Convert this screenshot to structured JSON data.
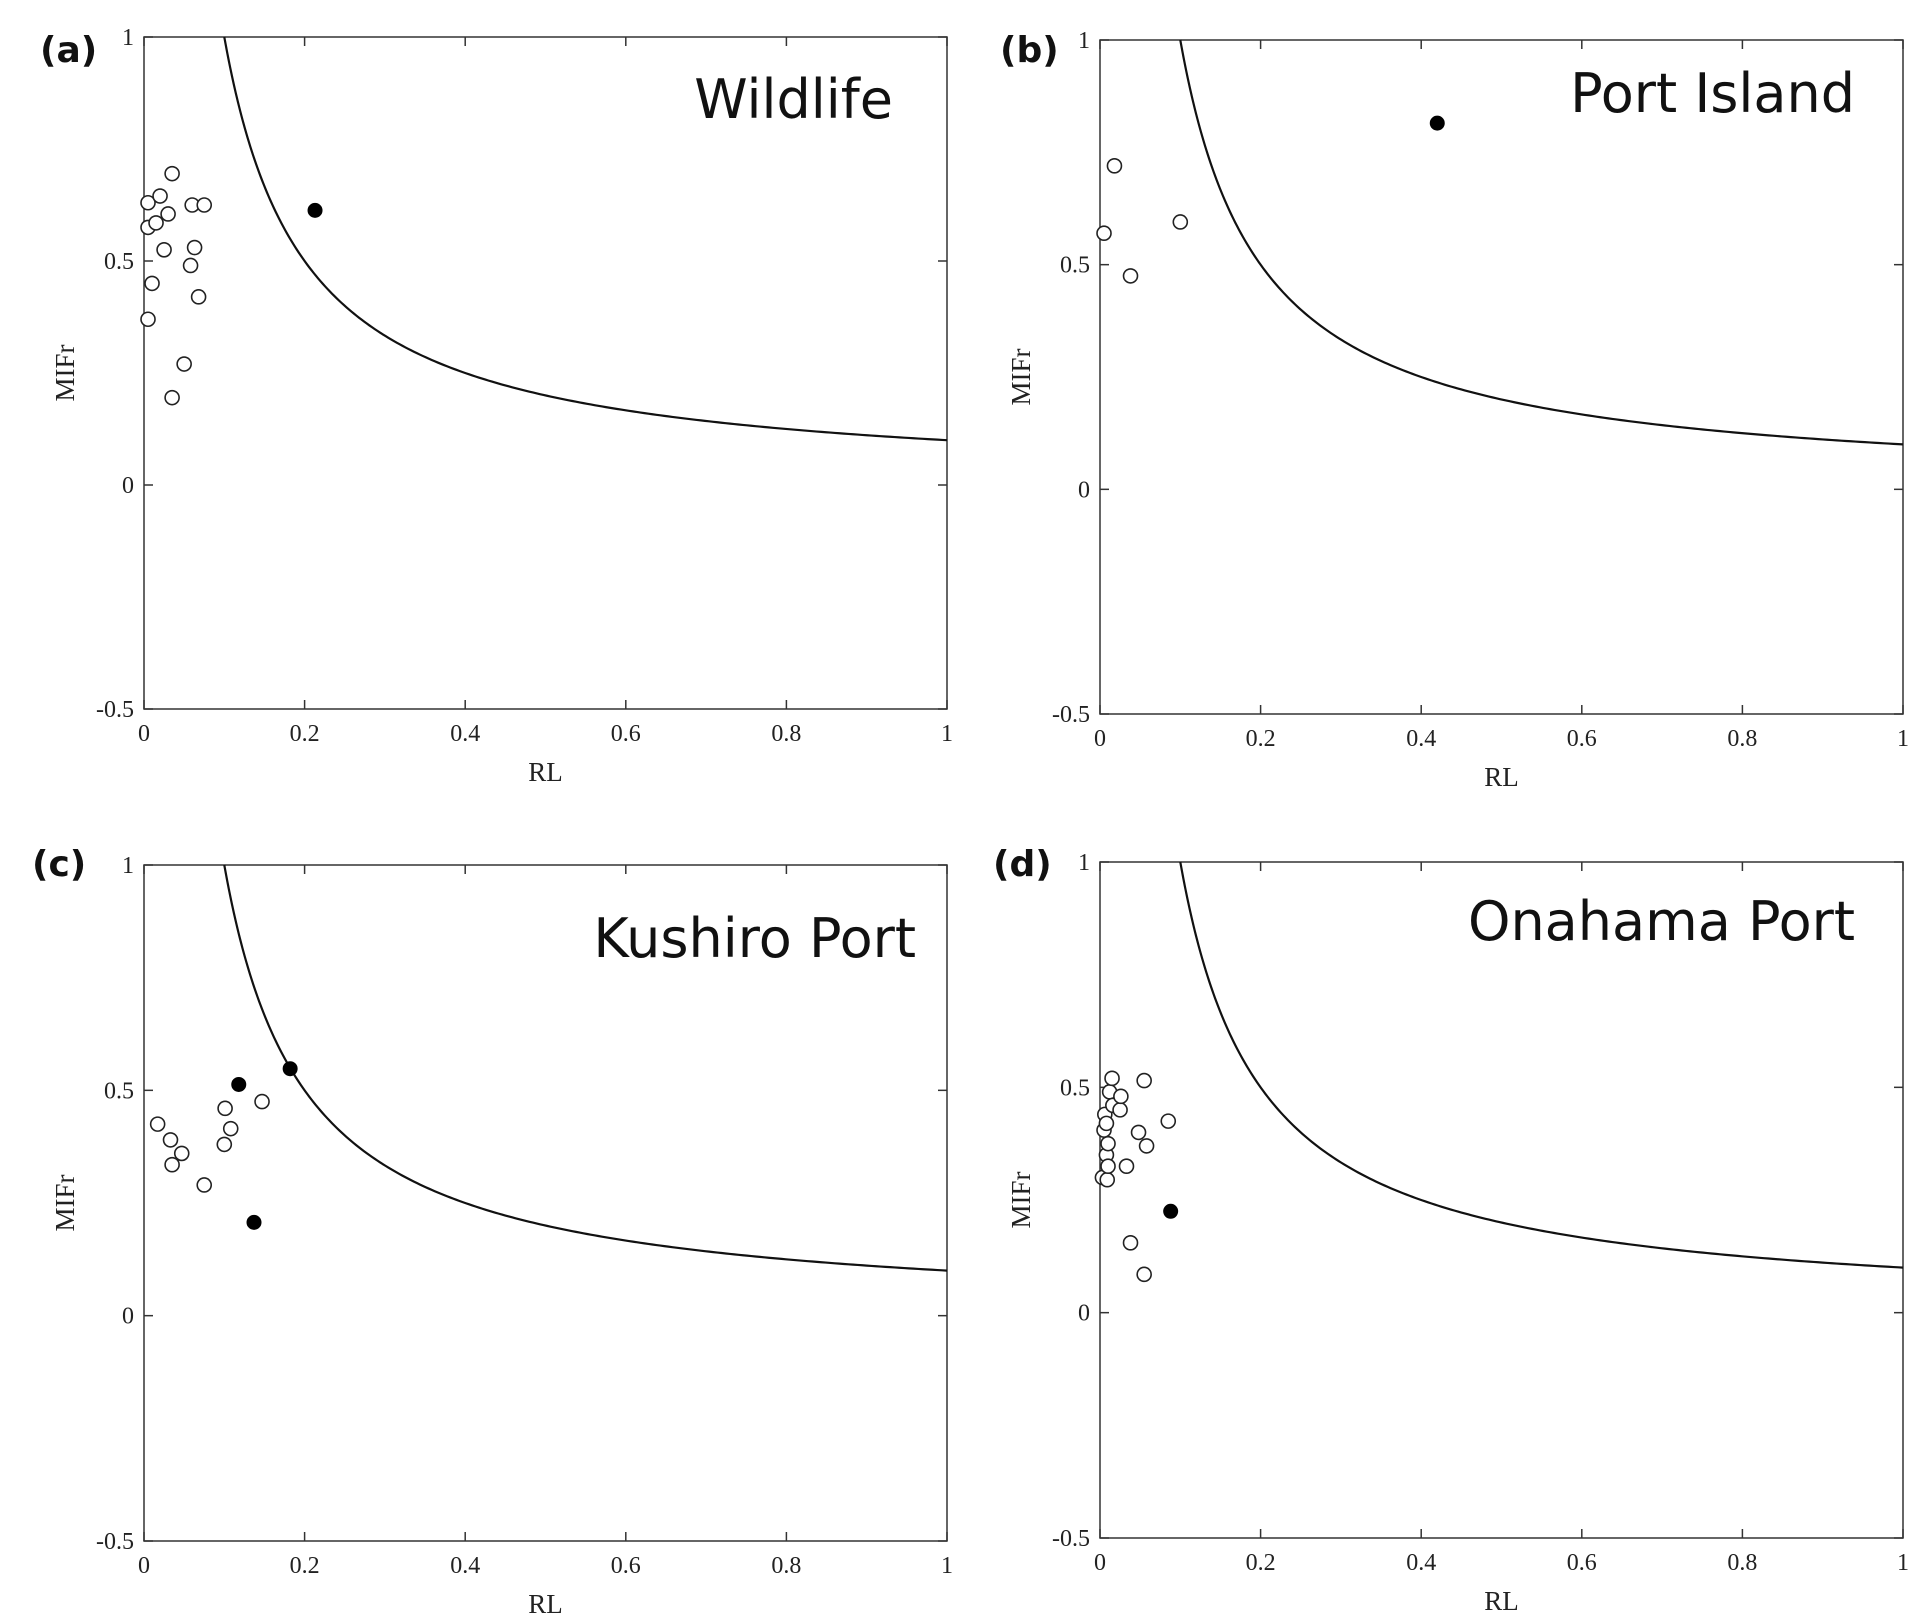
{
  "chart_data": [
    {
      "type": "scatter",
      "panel_label": "(a)",
      "title": "Wildlife",
      "xlabel": "RL",
      "ylabel": "MIFr",
      "xlim": [
        0,
        1
      ],
      "ylim": [
        -0.5,
        1
      ],
      "xticks": [
        "0",
        "0.2",
        "0.4",
        "0.6",
        "0.8",
        "1"
      ],
      "yticks": [
        "-0.5",
        "0",
        "0.5",
        "1"
      ],
      "curve": "MIFr = 0.1 / RL",
      "series": [
        {
          "style": "open",
          "points": [
            [
              0.005,
              0.63
            ],
            [
              0.005,
              0.575
            ],
            [
              0.005,
              0.37
            ],
            [
              0.01,
              0.45
            ],
            [
              0.015,
              0.585
            ],
            [
              0.02,
              0.645
            ],
            [
              0.025,
              0.525
            ],
            [
              0.03,
              0.605
            ],
            [
              0.035,
              0.695
            ],
            [
              0.035,
              0.195
            ],
            [
              0.05,
              0.27
            ],
            [
              0.058,
              0.49
            ],
            [
              0.06,
              0.625
            ],
            [
              0.063,
              0.53
            ],
            [
              0.068,
              0.42
            ],
            [
              0.075,
              0.625
            ]
          ]
        },
        {
          "style": "filled",
          "points": [
            [
              0.213,
              0.613
            ]
          ]
        }
      ]
    },
    {
      "type": "scatter",
      "panel_label": "(b)",
      "title": "Port Island",
      "xlabel": "RL",
      "ylabel": "MIFr",
      "xlim": [
        0,
        1
      ],
      "ylim": [
        -0.5,
        1
      ],
      "xticks": [
        "0",
        "0.2",
        "0.4",
        "0.6",
        "0.8",
        "1"
      ],
      "yticks": [
        "-0.5",
        "0",
        "0.5",
        "1"
      ],
      "curve": "MIFr = 0.1 / RL",
      "series": [
        {
          "style": "open",
          "points": [
            [
              0.005,
              0.57
            ],
            [
              0.018,
              0.72
            ],
            [
              0.038,
              0.475
            ],
            [
              0.1,
              0.595
            ]
          ]
        },
        {
          "style": "filled",
          "points": [
            [
              0.42,
              0.815
            ]
          ]
        }
      ]
    },
    {
      "type": "scatter",
      "panel_label": "(c)",
      "title": "Kushiro Port",
      "xlabel": "RL",
      "ylabel": "MIFr",
      "xlim": [
        0,
        1
      ],
      "ylim": [
        -0.5,
        1
      ],
      "xticks": [
        "0",
        "0.2",
        "0.4",
        "0.6",
        "0.8",
        "1"
      ],
      "yticks": [
        "-0.5",
        "0",
        "0.5",
        "1"
      ],
      "curve": "MIFr = 0.1 / RL",
      "series": [
        {
          "style": "open",
          "points": [
            [
              0.017,
              0.425
            ],
            [
              0.033,
              0.39
            ],
            [
              0.035,
              0.335
            ],
            [
              0.047,
              0.36
            ],
            [
              0.075,
              0.29
            ],
            [
              0.1,
              0.38
            ],
            [
              0.101,
              0.46
            ],
            [
              0.108,
              0.415
            ],
            [
              0.147,
              0.475
            ]
          ]
        },
        {
          "style": "filled",
          "points": [
            [
              0.118,
              0.513
            ],
            [
              0.137,
              0.207
            ],
            [
              0.182,
              0.548
            ]
          ]
        }
      ]
    },
    {
      "type": "scatter",
      "panel_label": "(d)",
      "title": "Onahama Port",
      "xlabel": "RL",
      "ylabel": "MIFr",
      "xlim": [
        0,
        1
      ],
      "ylim": [
        -0.5,
        1
      ],
      "xticks": [
        "0",
        "0.2",
        "0.4",
        "0.6",
        "0.8",
        "1"
      ],
      "yticks": [
        "-0.5",
        "0",
        "0.5",
        "1"
      ],
      "curve": "MIFr = 0.1 / RL",
      "series": [
        {
          "style": "open",
          "points": [
            [
              0.003,
              0.3
            ],
            [
              0.005,
              0.405
            ],
            [
              0.006,
              0.44
            ],
            [
              0.008,
              0.42
            ],
            [
              0.008,
              0.35
            ],
            [
              0.009,
              0.295
            ],
            [
              0.01,
              0.325
            ],
            [
              0.01,
              0.375
            ],
            [
              0.012,
              0.49
            ],
            [
              0.015,
              0.52
            ],
            [
              0.016,
              0.46
            ],
            [
              0.025,
              0.45
            ],
            [
              0.026,
              0.48
            ],
            [
              0.033,
              0.325
            ],
            [
              0.038,
              0.155
            ],
            [
              0.048,
              0.4
            ],
            [
              0.055,
              0.515
            ],
            [
              0.055,
              0.085
            ],
            [
              0.058,
              0.37
            ],
            [
              0.085,
              0.425
            ]
          ]
        },
        {
          "style": "filled",
          "points": [
            [
              0.088,
              0.225
            ]
          ]
        }
      ]
    }
  ]
}
